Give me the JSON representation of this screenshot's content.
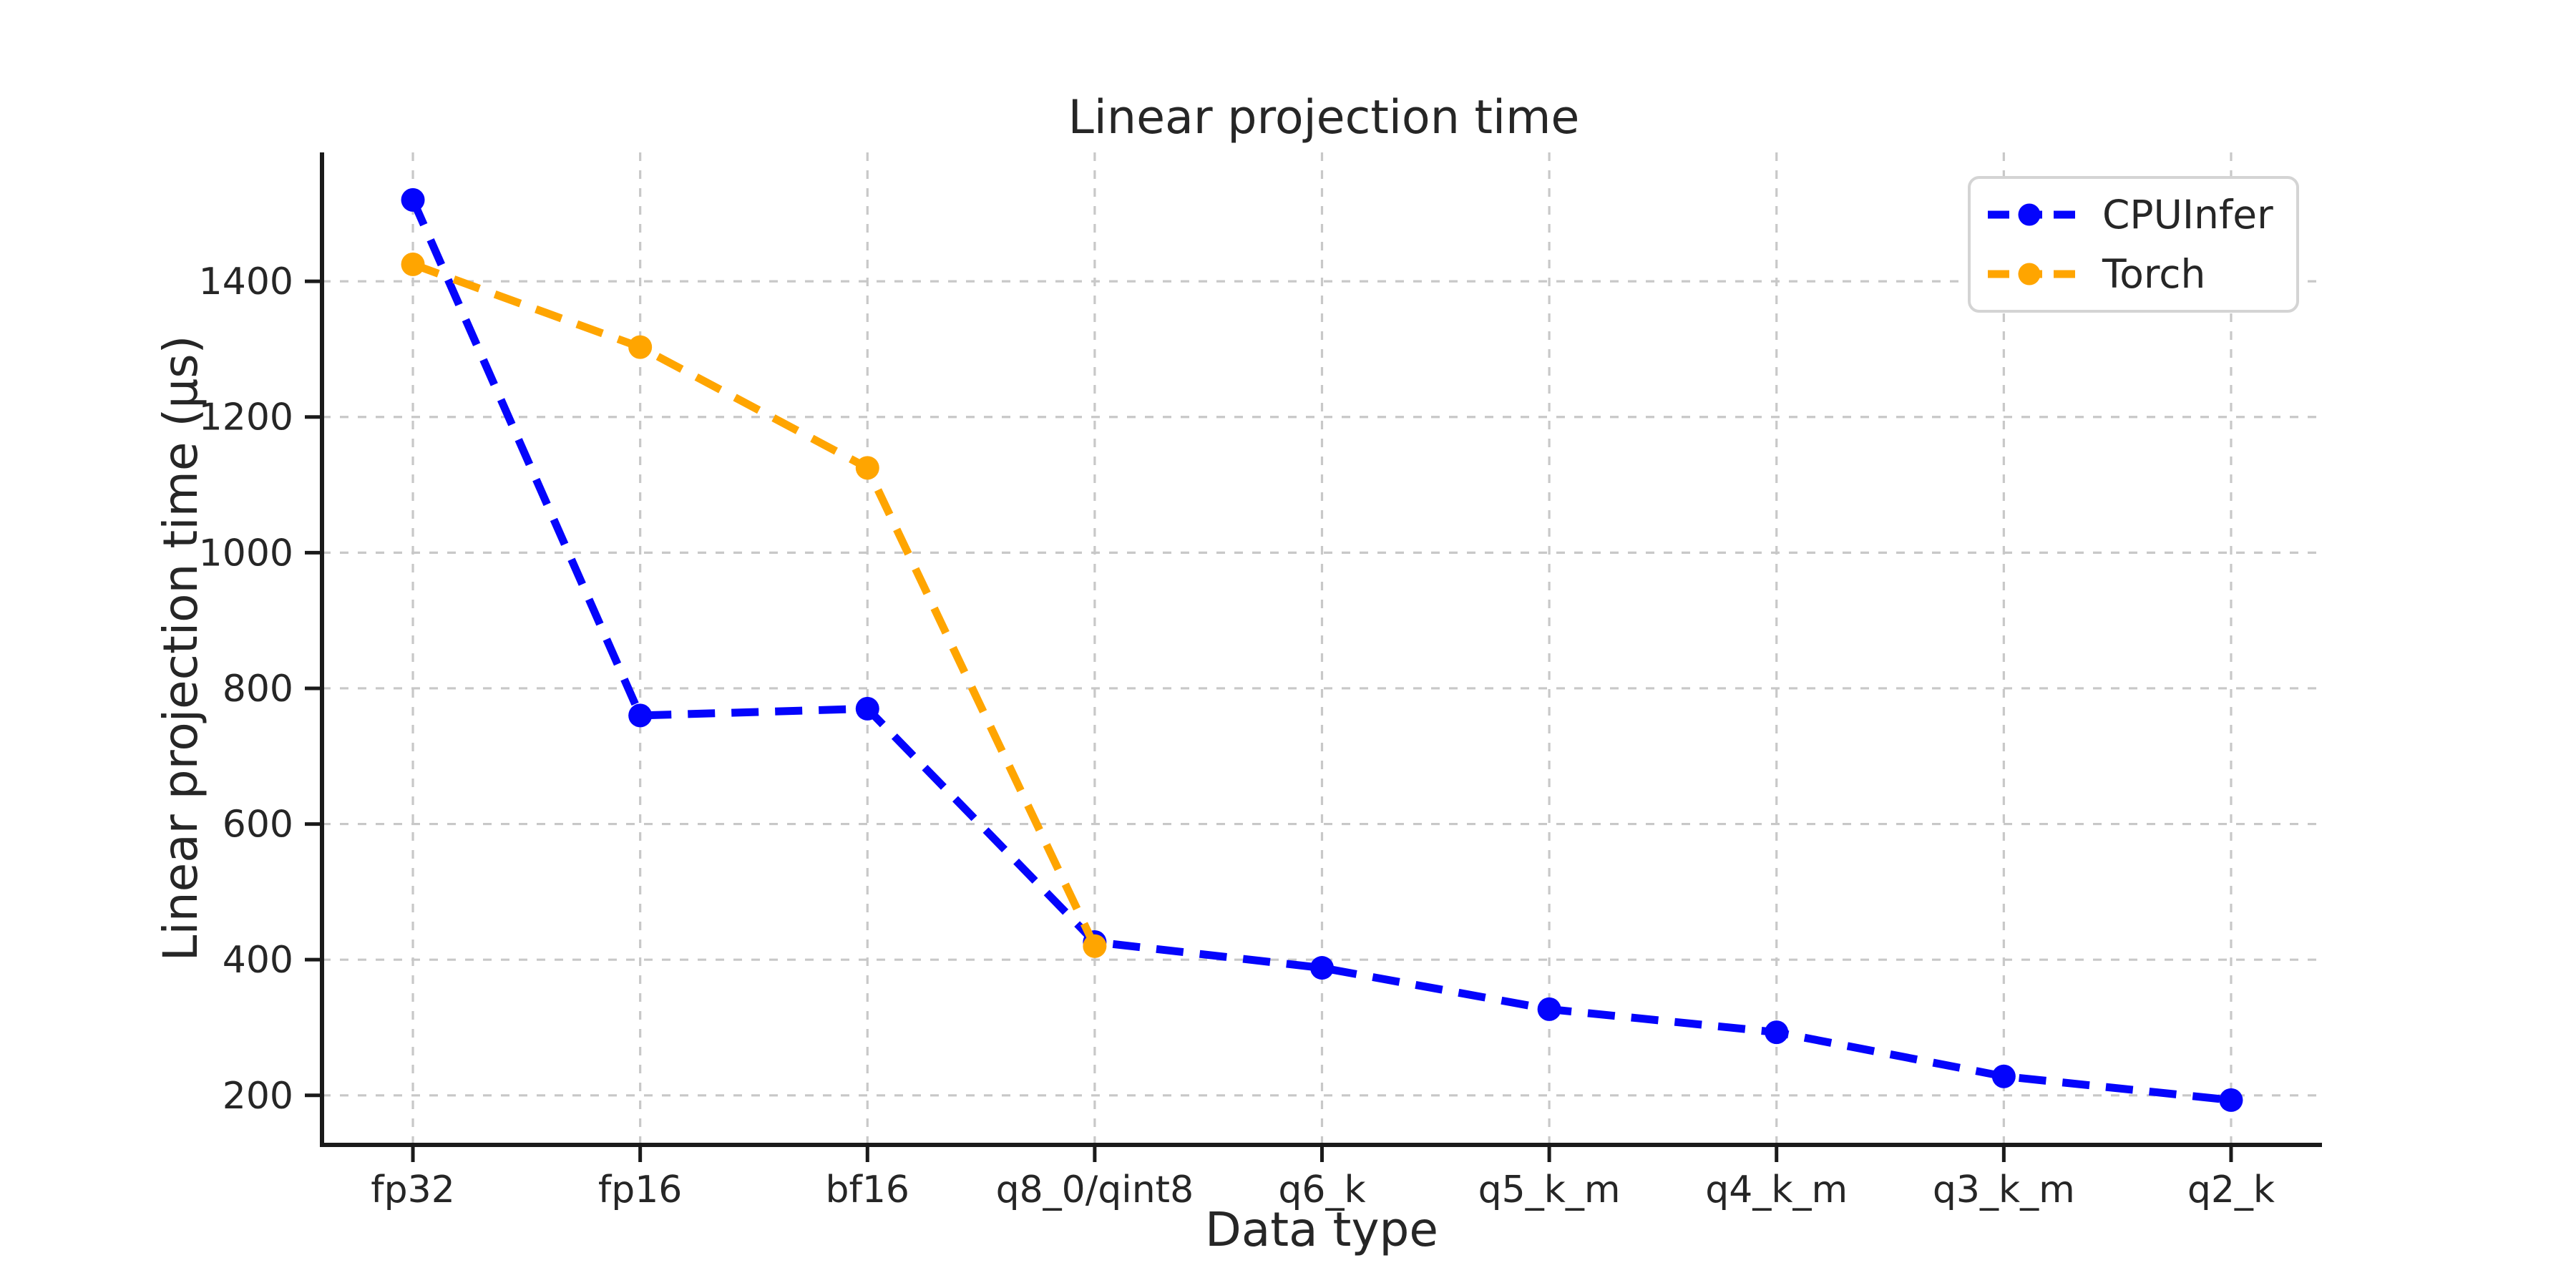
{
  "chart_data": {
    "type": "line",
    "title": "Linear projection time",
    "xlabel": "Data type",
    "ylabel": "Linear projection time (μs)",
    "categories": [
      "fp32",
      "fp16",
      "bf16",
      "q8_0/qint8",
      "q6_k",
      "q5_k_m",
      "q4_k_m",
      "q3_k_m",
      "q2_k"
    ],
    "yticks": [
      200,
      400,
      600,
      800,
      1000,
      1200,
      1400
    ],
    "ylim": [
      127,
      1590
    ],
    "grid": true,
    "legend_position": "upper right",
    "line_style": "dashed",
    "marker": "circle",
    "series": [
      {
        "name": "CPUInfer",
        "color": "#0404fc",
        "values": [
          1520,
          760,
          770,
          426,
          388,
          327,
          293,
          228,
          193
        ]
      },
      {
        "name": "Torch",
        "color": "#ffa500",
        "values": [
          1425,
          1303,
          1125,
          420
        ]
      }
    ]
  },
  "colors": {
    "background": "#ffffff",
    "grid": "#c8c8c8",
    "spine": "#1a1a1a",
    "text": "#262626",
    "legend_border": "#d4d4d4"
  }
}
